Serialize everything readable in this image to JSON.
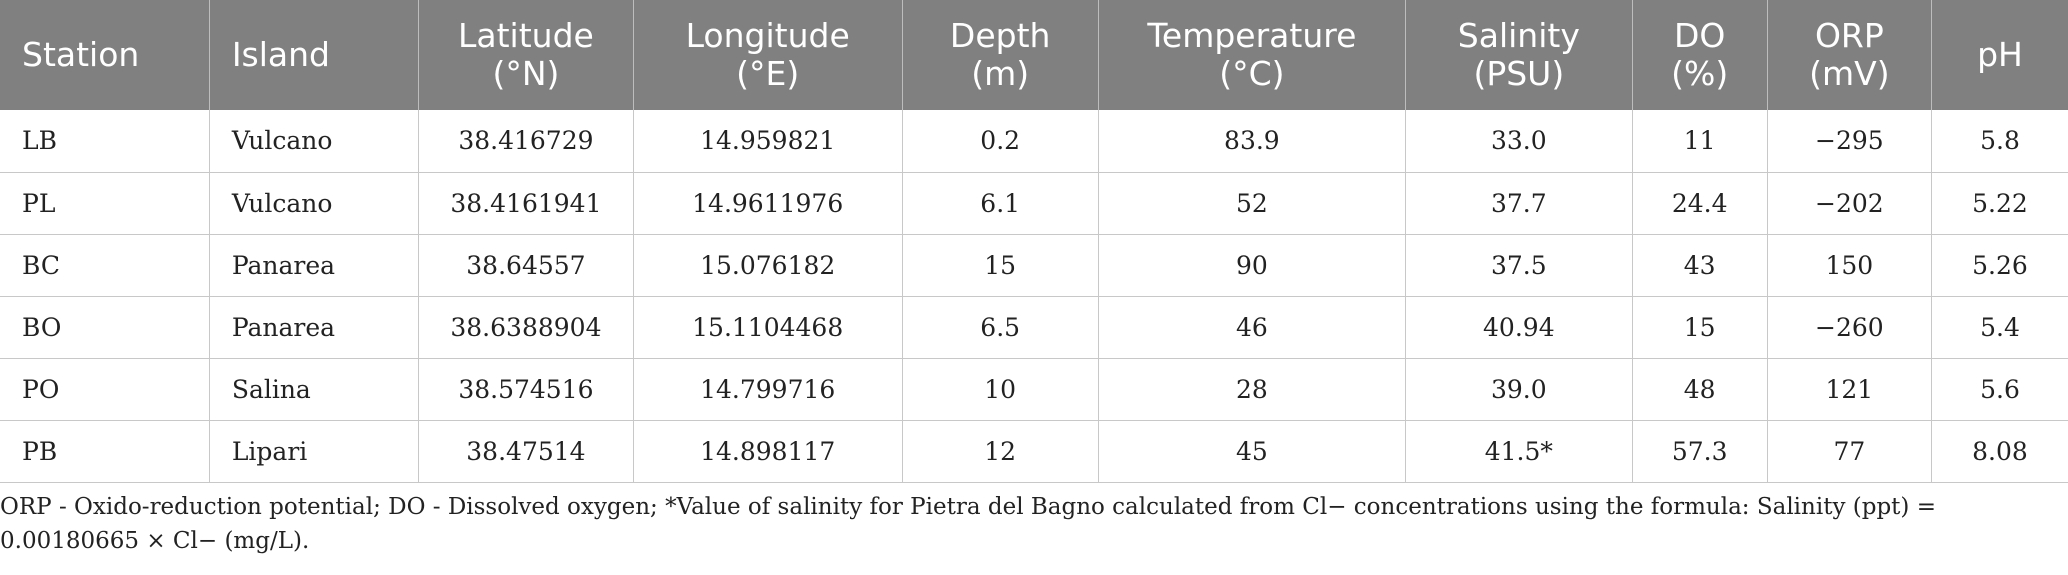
{
  "table": {
    "headers": [
      {
        "line1": "Station",
        "line2": ""
      },
      {
        "line1": "Island",
        "line2": ""
      },
      {
        "line1": "Latitude",
        "line2": "(°N)"
      },
      {
        "line1": "Longitude",
        "line2": "(°E)"
      },
      {
        "line1": "Depth",
        "line2": "(m)"
      },
      {
        "line1": "Temperature",
        "line2": "(°C)"
      },
      {
        "line1": "Salinity",
        "line2": "(PSU)"
      },
      {
        "line1": "DO",
        "line2": "(%)"
      },
      {
        "line1": "ORP",
        "line2": "(mV)"
      },
      {
        "line1": "pH",
        "line2": ""
      }
    ],
    "rows": [
      [
        "LB",
        "Vulcano",
        "38.416729",
        "14.959821",
        "0.2",
        "83.9",
        "33.0",
        "11",
        "−295",
        "5.8"
      ],
      [
        "PL",
        "Vulcano",
        "38.4161941",
        "14.9611976",
        "6.1",
        "52",
        "37.7",
        "24.4",
        "−202",
        "5.22"
      ],
      [
        "BC",
        "Panarea",
        "38.64557",
        "15.076182",
        "15",
        "90",
        "37.5",
        "43",
        "150",
        "5.26"
      ],
      [
        "BO",
        "Panarea",
        "38.6388904",
        "15.1104468",
        "6.5",
        "46",
        "40.94",
        "15",
        "−260",
        "5.4"
      ],
      [
        "PO",
        "Salina",
        "38.574516",
        "14.799716",
        "10",
        "28",
        "39.0",
        "48",
        "121",
        "5.6"
      ],
      [
        "PB",
        "Lipari",
        "38.47514",
        "14.898117",
        "12",
        "45",
        "41.5*",
        "57.3",
        "77",
        "8.08"
      ]
    ]
  },
  "footnote": "ORP - Oxido-reduction potential; DO - Dissolved oxygen; *Value of salinity for Pietra del Bagno calculated from Cl− concentrations using the formula: Salinity (ppt) = 0.00180665 × Cl− (mg/L)."
}
